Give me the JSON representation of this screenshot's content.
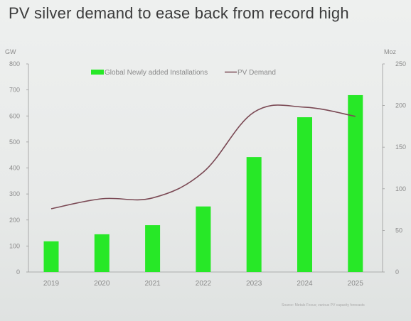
{
  "page": {
    "title": "PV silver demand to ease back from record high",
    "source": "Source: Metals Focus; various PV capacity forecasts"
  },
  "colors": {
    "bar": "#27e827",
    "line": "#7b4a55",
    "axis": "#9a9a9a",
    "text": "#8a8a8a"
  },
  "chart_data": {
    "type": "bar",
    "categories": [
      "2019",
      "2020",
      "2021",
      "2022",
      "2023",
      "2024",
      "2025"
    ],
    "series": [
      {
        "name": "Global Newly added Installations",
        "type": "bar",
        "axis": "left",
        "values": [
          118,
          145,
          180,
          252,
          442,
          595,
          680
        ]
      },
      {
        "name": "PV Demand",
        "type": "line",
        "axis": "right",
        "values": [
          76,
          88,
          89,
          120,
          192,
          198,
          187
        ]
      }
    ],
    "ylabel_left": "GW",
    "ylabel_right": "Moz",
    "ylim_left": [
      0,
      800
    ],
    "ylim_right": [
      0,
      250
    ],
    "yticks_left": [
      "0",
      "100",
      "200",
      "300",
      "400",
      "500",
      "600",
      "700",
      "800"
    ],
    "yticks_right": [
      "0",
      "50",
      "100",
      "150",
      "200",
      "250"
    ],
    "grid": false,
    "legend_placement": "top-center"
  }
}
